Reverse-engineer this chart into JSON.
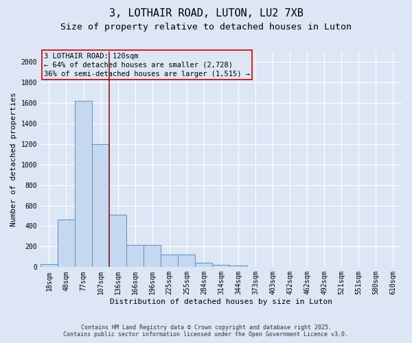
{
  "title_line1": "3, LOTHAIR ROAD, LUTON, LU2 7XB",
  "title_line2": "Size of property relative to detached houses in Luton",
  "xlabel": "Distribution of detached houses by size in Luton",
  "ylabel": "Number of detached properties",
  "categories": [
    "18sqm",
    "48sqm",
    "77sqm",
    "107sqm",
    "136sqm",
    "166sqm",
    "196sqm",
    "225sqm",
    "255sqm",
    "284sqm",
    "314sqm",
    "344sqm",
    "373sqm",
    "403sqm",
    "432sqm",
    "462sqm",
    "492sqm",
    "521sqm",
    "551sqm",
    "580sqm",
    "610sqm"
  ],
  "values": [
    30,
    460,
    1620,
    1200,
    510,
    215,
    215,
    125,
    125,
    40,
    25,
    15,
    0,
    0,
    0,
    0,
    0,
    0,
    0,
    0,
    0
  ],
  "bar_color": "#c5d8f0",
  "bar_edge_color": "#5b8ec4",
  "vline_x": 3.5,
  "vline_color": "#8b1a1a",
  "annotation_title": "3 LOTHAIR ROAD: 120sqm",
  "annotation_line2": "← 64% of detached houses are smaller (2,728)",
  "annotation_line3": "36% of semi-detached houses are larger (1,515) →",
  "annotation_box_color": "#cc0000",
  "ylim": [
    0,
    2100
  ],
  "yticks": [
    0,
    200,
    400,
    600,
    800,
    1000,
    1200,
    1400,
    1600,
    1800,
    2000
  ],
  "background_color": "#dce6f5",
  "footer_line1": "Contains HM Land Registry data © Crown copyright and database right 2025.",
  "footer_line2": "Contains public sector information licensed under the Open Government Licence v3.0.",
  "title_fontsize": 11,
  "subtitle_fontsize": 9.5,
  "axis_label_fontsize": 8,
  "tick_fontsize": 7,
  "annotation_fontsize": 7.5,
  "footer_fontsize": 6
}
